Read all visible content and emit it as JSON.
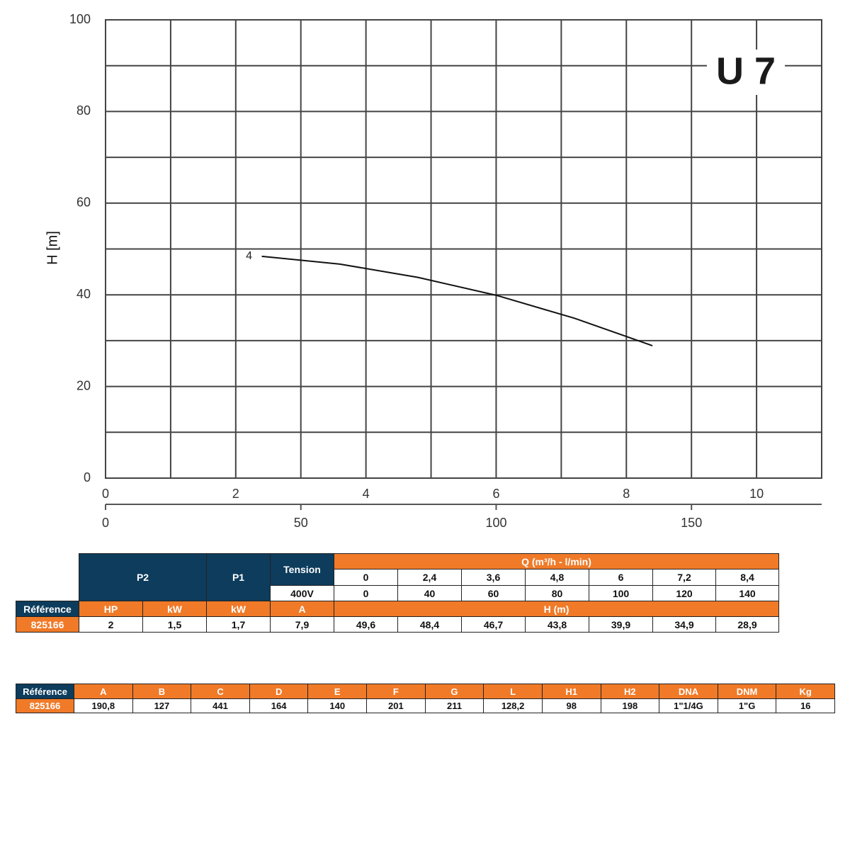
{
  "chart_data": {
    "type": "line",
    "title": "U 7",
    "y_label": "H [m]",
    "xlim": [
      0,
      11
    ],
    "xticks": [
      0,
      2,
      4,
      6,
      8,
      10
    ],
    "xminor": [
      1,
      3,
      5,
      7,
      9
    ],
    "ylim": [
      0,
      100
    ],
    "yticks": [
      0,
      20,
      40,
      60,
      80,
      100
    ],
    "yminor": [
      10,
      30,
      50,
      70,
      90
    ],
    "x2lim": [
      0,
      183.33
    ],
    "x2ticks": [
      0,
      50,
      100,
      150
    ],
    "grid": true,
    "grid_color": "#444444",
    "x": [
      2.4,
      3.6,
      4.8,
      6,
      7.2,
      8.4
    ],
    "series": [
      {
        "name": "4",
        "color": "#111111",
        "values": [
          48.4,
          46.7,
          43.8,
          39.9,
          34.9,
          28.9
        ]
      }
    ]
  },
  "tables": [
    {
      "header": {
        "p2": "P2",
        "p1": "P1",
        "tension": "Tension",
        "voltage": "400V",
        "q_title": "Q (m³/h - l/min)",
        "reference": "Référence",
        "hp": "HP",
        "kw_p2": "kW",
        "kw_p1": "kW",
        "amp": "A",
        "h_title": "H (m)"
      },
      "q_m3h": [
        "0",
        "2,4",
        "3,6",
        "4,8",
        "6",
        "7,2",
        "8,4"
      ],
      "q_lmin": [
        "0",
        "40",
        "60",
        "80",
        "100",
        "120",
        "140"
      ],
      "row": [
        "825166",
        "2",
        "1,5",
        "1,7",
        "7,9"
      ],
      "h": [
        "49,6",
        "48,4",
        "46,7",
        "43,8",
        "39,9",
        "34,9",
        "28,9"
      ]
    },
    {
      "header": [
        "Référence",
        "A",
        "B",
        "C",
        "D",
        "E",
        "F",
        "G",
        "L",
        "H1",
        "H2",
        "DNA",
        "DNM",
        "Kg"
      ],
      "row": [
        "825166",
        "190,8",
        "127",
        "441",
        "164",
        "140",
        "201",
        "211",
        "128,2",
        "98",
        "198",
        "1\"1/4G",
        "1\"G",
        "16"
      ]
    }
  ]
}
